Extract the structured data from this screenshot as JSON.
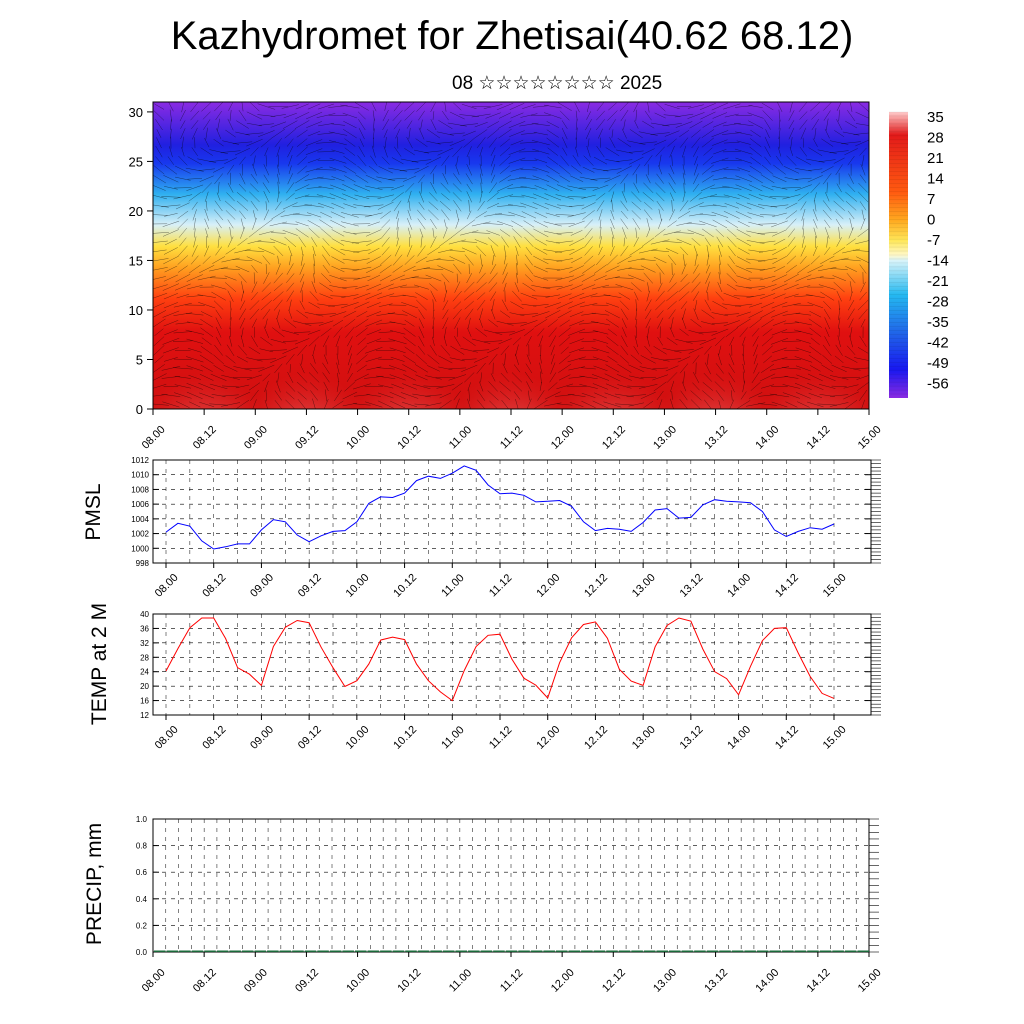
{
  "header": {
    "title": "Kazhydromet for Zhetisai(40.62 68.12)",
    "subtitle": "08 ☆☆☆☆☆☆☆☆ 2025"
  },
  "chart_data": [
    {
      "type": "heatmap",
      "title": "Kazhydromet for Zhetisai(40.62 68.12)",
      "subtitle": "08 ☆☆☆☆☆☆☆☆ 2025",
      "x_tick_labels": [
        "08.00",
        "08.12",
        "09.00",
        "09.12",
        "10.00",
        "10.12",
        "11.00",
        "11.12",
        "12.00",
        "12.12",
        "13.00",
        "13.12",
        "14.00",
        "14.12",
        "15.00"
      ],
      "y_ticks": [
        0,
        5,
        10,
        15,
        20,
        25,
        30
      ],
      "ylim": [
        0,
        31
      ],
      "colorbar": {
        "labels": [
          "35",
          "28",
          "21",
          "14",
          "7",
          "0",
          "-7",
          "-14",
          "-21",
          "-28",
          "-35",
          "-42",
          "-49",
          "-56"
        ],
        "range": [
          -60,
          37
        ]
      },
      "overlay": "wind vectors",
      "daytime_max_x": [
        0.5,
        1.5,
        2.5,
        3.5,
        4.5,
        5.5,
        6.5
      ]
    },
    {
      "type": "line",
      "ylabel": "PMSL",
      "ylim": [
        998,
        1012
      ],
      "y_ticks": [
        "998",
        "1000",
        "1002",
        "1004",
        "1006",
        "1008",
        "1010",
        "1012"
      ],
      "x_tick_labels": [
        "08.00",
        "08.12",
        "09.00",
        "09.12",
        "10.00",
        "10.12",
        "11.00",
        "11.12",
        "12.00",
        "12.12",
        "13.00",
        "13.12",
        "14.00",
        "14.12",
        "15.00"
      ],
      "color": "#0000ff",
      "x": [
        0,
        1,
        2,
        3,
        4,
        5,
        6,
        7,
        8,
        9,
        10,
        11,
        12,
        13,
        14,
        15,
        16,
        17,
        18,
        19,
        20,
        21,
        22,
        23,
        24,
        25,
        26,
        27,
        28,
        29,
        30,
        31,
        32,
        33,
        34,
        35,
        36,
        37,
        38,
        39,
        40,
        41,
        42,
        43,
        44,
        45,
        46,
        47,
        48,
        49,
        50,
        51,
        52,
        53,
        54,
        55,
        56
      ],
      "values": [
        1002.2,
        1003.4,
        1003,
        1001,
        999.9,
        1000.2,
        1000.6,
        1000.6,
        1002.5,
        1003.9,
        1003.6,
        1001.8,
        1000.9,
        1001.7,
        1002.3,
        1002.4,
        1003.6,
        1006.1,
        1007,
        1006.9,
        1007.5,
        1009.2,
        1009.8,
        1009.5,
        1010.2,
        1011.2,
        1010.6,
        1008.6,
        1007.4,
        1007.5,
        1007.2,
        1006.3,
        1006.4,
        1006.5,
        1005.7,
        1003.6,
        1002.4,
        1002.7,
        1002.6,
        1002.3,
        1003.5,
        1005.2,
        1005.4,
        1004.1,
        1004.2,
        1005.9,
        1006.6,
        1006.4,
        1006.3,
        1006.2,
        1005,
        1002.5,
        1001.6,
        1002.3,
        1002.8,
        1002.6,
        1003.3
      ]
    },
    {
      "type": "line",
      "ylabel": "TEMP at 2 M",
      "ylim": [
        12,
        40
      ],
      "y_ticks": [
        "12",
        "16",
        "20",
        "24",
        "28",
        "32",
        "36",
        "40"
      ],
      "x_tick_labels": [
        "08.00",
        "08.12",
        "09.00",
        "09.12",
        "10.00",
        "10.12",
        "11.00",
        "11.12",
        "12.00",
        "12.12",
        "13.00",
        "13.12",
        "14.00",
        "14.12",
        "15.00"
      ],
      "color": "#ff0000",
      "x": [
        0,
        1,
        2,
        3,
        4,
        5,
        6,
        7,
        8,
        9,
        10,
        11,
        12,
        13,
        14,
        15,
        16,
        17,
        18,
        19,
        20,
        21,
        22,
        23,
        24,
        25,
        26,
        27,
        28,
        29,
        30,
        31,
        32,
        33,
        34,
        35,
        36,
        37,
        38,
        39,
        40,
        41,
        42,
        43,
        44,
        45,
        46,
        47,
        48,
        49,
        50,
        51,
        52,
        53,
        54,
        55,
        56
      ],
      "values": [
        24.2,
        30.4,
        36.2,
        38.9,
        38.9,
        33.2,
        25.1,
        23.3,
        20.2,
        31,
        36.3,
        38.2,
        37.6,
        30.8,
        25.1,
        19.9,
        21.5,
        26.1,
        32.8,
        33.6,
        32.9,
        26.1,
        21.5,
        18.4,
        16,
        24.3,
        31,
        34.1,
        34.4,
        27.5,
        22.2,
        20.3,
        16.7,
        26.5,
        33.4,
        37.1,
        37.8,
        33.3,
        24.7,
        21.4,
        20.2,
        30.9,
        36.8,
        38.9,
        38,
        30.3,
        24,
        22.1,
        17.6,
        25.5,
        32.6,
        36,
        36.2,
        29.2,
        22.7,
        18,
        16.6
      ]
    },
    {
      "type": "bar",
      "ylabel": "PRECIP, mm",
      "ylim": [
        0,
        1
      ],
      "y_ticks": [
        "0.0",
        "0.2",
        "0.4",
        "0.6",
        "0.8",
        "1.0"
      ],
      "x_tick_labels": [
        "08.00",
        "08.12",
        "09.00",
        "09.12",
        "10.00",
        "10.12",
        "11.00",
        "11.12",
        "12.00",
        "12.12",
        "13.00",
        "13.12",
        "14.00",
        "14.12",
        "15.00"
      ],
      "values": [
        0,
        0,
        0,
        0,
        0,
        0,
        0,
        0,
        0,
        0,
        0,
        0,
        0,
        0,
        0,
        0,
        0,
        0,
        0,
        0,
        0,
        0,
        0,
        0,
        0,
        0,
        0,
        0,
        0,
        0,
        0,
        0,
        0,
        0,
        0,
        0,
        0,
        0,
        0,
        0,
        0,
        0,
        0,
        0,
        0,
        0,
        0,
        0,
        0,
        0,
        0,
        0,
        0,
        0,
        0,
        0,
        0
      ]
    }
  ]
}
